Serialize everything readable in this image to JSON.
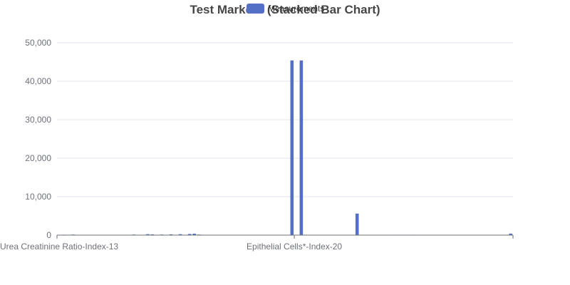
{
  "chart_data": {
    "type": "bar",
    "title": "Test Markers (Stacked Bar Chart)",
    "legend": {
      "label": "Measurements",
      "color": "#5470c6",
      "placement": "top-center"
    },
    "xlabel": "",
    "ylabel": "",
    "ylim": [
      0,
      50000
    ],
    "yticks": [
      "0",
      "10,000",
      "20,000",
      "30,000",
      "40,000",
      "50,000"
    ],
    "grid": true,
    "bar_color": "#5470c6",
    "shown_x_labels": [
      "Urea Creatinine Ratio-Index-13",
      "Epithelial Cells*-Index-20"
    ],
    "x_label_positions": [
      0,
      51
    ],
    "values": [
      20,
      110,
      15,
      150,
      5,
      10,
      10,
      5,
      15,
      10,
      5,
      10,
      5,
      8,
      10,
      8,
      150,
      10,
      30,
      250,
      200,
      20,
      150,
      10,
      200,
      10,
      250,
      20,
      300,
      380,
      150,
      5,
      5,
      5,
      5,
      5,
      5,
      5,
      5,
      5,
      5,
      5,
      5,
      5,
      5,
      5,
      5,
      5,
      5,
      5,
      45400,
      5,
      45400,
      5,
      5,
      5,
      5,
      5,
      5,
      5,
      5,
      5,
      5,
      5,
      5600,
      5,
      5,
      5,
      5,
      80,
      80,
      5,
      5,
      100,
      80,
      100,
      100,
      5,
      5,
      5,
      5,
      5,
      5,
      5,
      5,
      5,
      80,
      5,
      5,
      5,
      5,
      5,
      5,
      5,
      5,
      5,
      80,
      400
    ]
  }
}
